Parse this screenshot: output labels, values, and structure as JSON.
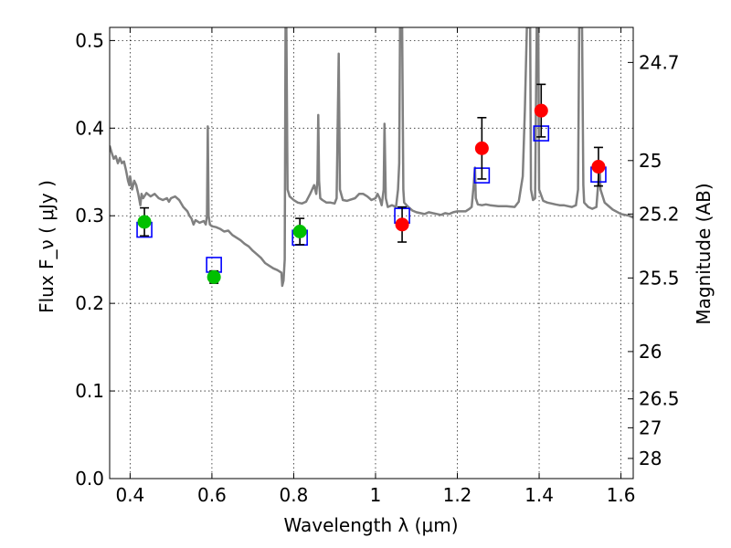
{
  "chart_data": {
    "type": "scatter",
    "xlabel": "Wavelength  λ (μm)",
    "ylabel": "Flux  F_ν  ( μJy )",
    "ylabel_right": "Magnitude (AB)",
    "xlim": [
      0.35,
      1.63
    ],
    "ylim": [
      0.0,
      0.515
    ],
    "grid": true,
    "x_ticks": [
      0.4,
      0.6,
      0.8,
      1.0,
      1.2,
      1.4,
      1.6
    ],
    "x_tick_labels": [
      "0.4",
      "0.6",
      "0.8",
      "1",
      "1.2",
      "1.4",
      "1.6"
    ],
    "y_ticks": [
      0.0,
      0.1,
      0.2,
      0.3,
      0.4,
      0.5
    ],
    "y_tick_labels": [
      "0.0",
      "0.1",
      "0.2",
      "0.3",
      "0.4",
      "0.5"
    ],
    "right_ticks": [
      {
        "label": "24.7",
        "flux": 0.475
      },
      {
        "label": "25",
        "flux": 0.363
      },
      {
        "label": "25.2",
        "flux": 0.302
      },
      {
        "label": "25.5",
        "flux": 0.229
      },
      {
        "label": "26",
        "flux": 0.145
      },
      {
        "label": "26.5",
        "flux": 0.091
      },
      {
        "label": "27",
        "flux": 0.058
      },
      {
        "label": "28",
        "flux": 0.023
      }
    ],
    "colors": {
      "spectrum": "#808080",
      "observed_optical": "#00c000",
      "observed_nir": "#ff0000",
      "model": "#0000ff",
      "error_bar": "#000000"
    },
    "series": [
      {
        "kind": "spectrum",
        "points": [
          [
            0.35,
            0.38
          ],
          [
            0.355,
            0.372
          ],
          [
            0.36,
            0.365
          ],
          [
            0.365,
            0.368
          ],
          [
            0.37,
            0.36
          ],
          [
            0.375,
            0.366
          ],
          [
            0.38,
            0.36
          ],
          [
            0.385,
            0.362
          ],
          [
            0.39,
            0.352
          ],
          [
            0.395,
            0.34
          ],
          [
            0.398,
            0.335
          ],
          [
            0.4,
            0.345
          ],
          [
            0.405,
            0.33
          ],
          [
            0.41,
            0.34
          ],
          [
            0.415,
            0.335
          ],
          [
            0.42,
            0.325
          ],
          [
            0.425,
            0.312
          ],
          [
            0.428,
            0.325
          ],
          [
            0.432,
            0.32
          ],
          [
            0.44,
            0.326
          ],
          [
            0.45,
            0.322
          ],
          [
            0.46,
            0.325
          ],
          [
            0.47,
            0.32
          ],
          [
            0.48,
            0.318
          ],
          [
            0.49,
            0.32
          ],
          [
            0.495,
            0.316
          ],
          [
            0.5,
            0.32
          ],
          [
            0.51,
            0.322
          ],
          [
            0.52,
            0.318
          ],
          [
            0.53,
            0.31
          ],
          [
            0.54,
            0.305
          ],
          [
            0.545,
            0.3
          ],
          [
            0.55,
            0.297
          ],
          [
            0.555,
            0.29
          ],
          [
            0.56,
            0.295
          ],
          [
            0.57,
            0.292
          ],
          [
            0.58,
            0.294
          ],
          [
            0.585,
            0.29
          ],
          [
            0.588,
            0.3
          ],
          [
            0.59,
            0.402
          ],
          [
            0.592,
            0.3
          ],
          [
            0.595,
            0.29
          ],
          [
            0.6,
            0.288
          ],
          [
            0.61,
            0.287
          ],
          [
            0.62,
            0.285
          ],
          [
            0.63,
            0.282
          ],
          [
            0.64,
            0.283
          ],
          [
            0.65,
            0.278
          ],
          [
            0.66,
            0.275
          ],
          [
            0.67,
            0.272
          ],
          [
            0.68,
            0.268
          ],
          [
            0.69,
            0.265
          ],
          [
            0.7,
            0.26
          ],
          [
            0.71,
            0.256
          ],
          [
            0.72,
            0.252
          ],
          [
            0.73,
            0.246
          ],
          [
            0.74,
            0.243
          ],
          [
            0.75,
            0.24
          ],
          [
            0.76,
            0.238
          ],
          [
            0.77,
            0.235
          ],
          [
            0.772,
            0.22
          ],
          [
            0.775,
            0.226
          ],
          [
            0.778,
            0.25
          ],
          [
            0.78,
            0.515
          ],
          [
            0.782,
            0.515
          ],
          [
            0.785,
            0.33
          ],
          [
            0.79,
            0.322
          ],
          [
            0.8,
            0.318
          ],
          [
            0.81,
            0.315
          ],
          [
            0.82,
            0.314
          ],
          [
            0.83,
            0.316
          ],
          [
            0.84,
            0.325
          ],
          [
            0.845,
            0.33
          ],
          [
            0.85,
            0.335
          ],
          [
            0.855,
            0.325
          ],
          [
            0.858,
            0.34
          ],
          [
            0.86,
            0.415
          ],
          [
            0.862,
            0.34
          ],
          [
            0.865,
            0.32
          ],
          [
            0.87,
            0.318
          ],
          [
            0.88,
            0.315
          ],
          [
            0.89,
            0.315
          ],
          [
            0.9,
            0.314
          ],
          [
            0.905,
            0.32
          ],
          [
            0.91,
            0.485
          ],
          [
            0.913,
            0.33
          ],
          [
            0.92,
            0.318
          ],
          [
            0.93,
            0.317
          ],
          [
            0.95,
            0.32
          ],
          [
            0.96,
            0.325
          ],
          [
            0.97,
            0.325
          ],
          [
            0.98,
            0.322
          ],
          [
            0.99,
            0.318
          ],
          [
            1.0,
            0.32
          ],
          [
            1.005,
            0.325
          ],
          [
            1.01,
            0.32
          ],
          [
            1.015,
            0.312
          ],
          [
            1.02,
            0.33
          ],
          [
            1.022,
            0.405
          ],
          [
            1.025,
            0.32
          ],
          [
            1.03,
            0.31
          ],
          [
            1.04,
            0.312
          ],
          [
            1.05,
            0.31
          ],
          [
            1.055,
            0.33
          ],
          [
            1.058,
            0.36
          ],
          [
            1.06,
            0.515
          ],
          [
            1.065,
            0.515
          ],
          [
            1.068,
            0.33
          ],
          [
            1.07,
            0.315
          ],
          [
            1.08,
            0.31
          ],
          [
            1.09,
            0.306
          ],
          [
            1.1,
            0.304
          ],
          [
            1.11,
            0.303
          ],
          [
            1.12,
            0.302
          ],
          [
            1.13,
            0.304
          ],
          [
            1.14,
            0.303
          ],
          [
            1.15,
            0.302
          ],
          [
            1.16,
            0.301
          ],
          [
            1.17,
            0.303
          ],
          [
            1.18,
            0.302
          ],
          [
            1.19,
            0.304
          ],
          [
            1.2,
            0.305
          ],
          [
            1.21,
            0.305
          ],
          [
            1.22,
            0.305
          ],
          [
            1.23,
            0.308
          ],
          [
            1.235,
            0.31
          ],
          [
            1.24,
            0.335
          ],
          [
            1.243,
            0.355
          ],
          [
            1.245,
            0.32
          ],
          [
            1.25,
            0.313
          ],
          [
            1.26,
            0.312
          ],
          [
            1.27,
            0.313
          ],
          [
            1.28,
            0.312
          ],
          [
            1.3,
            0.311
          ],
          [
            1.32,
            0.311
          ],
          [
            1.34,
            0.31
          ],
          [
            1.35,
            0.316
          ],
          [
            1.36,
            0.345
          ],
          [
            1.365,
            0.42
          ],
          [
            1.37,
            0.515
          ],
          [
            1.378,
            0.515
          ],
          [
            1.38,
            0.33
          ],
          [
            1.385,
            0.318
          ],
          [
            1.39,
            0.32
          ],
          [
            1.392,
            0.42
          ],
          [
            1.394,
            0.515
          ],
          [
            1.398,
            0.515
          ],
          [
            1.4,
            0.33
          ],
          [
            1.41,
            0.317
          ],
          [
            1.42,
            0.315
          ],
          [
            1.43,
            0.314
          ],
          [
            1.44,
            0.313
          ],
          [
            1.45,
            0.312
          ],
          [
            1.46,
            0.312
          ],
          [
            1.47,
            0.311
          ],
          [
            1.48,
            0.31
          ],
          [
            1.49,
            0.312
          ],
          [
            1.495,
            0.33
          ],
          [
            1.498,
            0.515
          ],
          [
            1.505,
            0.515
          ],
          [
            1.508,
            0.335
          ],
          [
            1.51,
            0.315
          ],
          [
            1.52,
            0.31
          ],
          [
            1.53,
            0.308
          ],
          [
            1.54,
            0.31
          ],
          [
            1.545,
            0.34
          ],
          [
            1.548,
            0.355
          ],
          [
            1.55,
            0.33
          ],
          [
            1.56,
            0.315
          ],
          [
            1.58,
            0.307
          ],
          [
            1.6,
            0.302
          ],
          [
            1.62,
            0.3
          ],
          [
            1.63,
            0.298
          ]
        ]
      },
      {
        "kind": "model",
        "points": [
          [
            0.435,
            0.284
          ],
          [
            0.605,
            0.244
          ],
          [
            0.815,
            0.275
          ],
          [
            1.065,
            0.3
          ],
          [
            1.26,
            0.346
          ],
          [
            1.405,
            0.394
          ],
          [
            1.545,
            0.347
          ]
        ]
      },
      {
        "kind": "observed",
        "points": [
          {
            "x": 0.435,
            "y": 0.293,
            "err": 0.016,
            "group": "optical"
          },
          {
            "x": 0.605,
            "y": 0.23,
            "err": 0.007,
            "group": "optical"
          },
          {
            "x": 0.815,
            "y": 0.282,
            "err": 0.015,
            "group": "optical"
          },
          {
            "x": 1.065,
            "y": 0.29,
            "err": 0.02,
            "group": "nir"
          },
          {
            "x": 1.26,
            "y": 0.377,
            "err": 0.035,
            "group": "nir"
          },
          {
            "x": 1.405,
            "y": 0.42,
            "err": 0.03,
            "group": "nir"
          },
          {
            "x": 1.545,
            "y": 0.356,
            "err": 0.022,
            "group": "nir"
          }
        ]
      }
    ]
  }
}
